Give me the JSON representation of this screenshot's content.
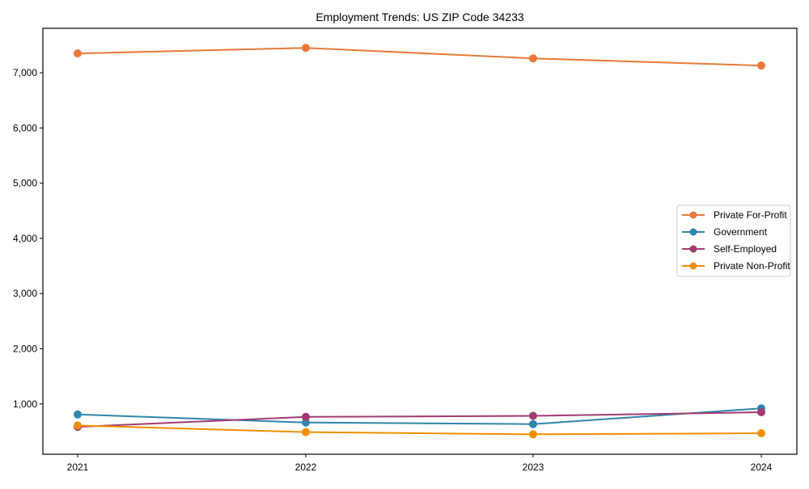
{
  "chart_data": {
    "type": "line",
    "title": "Employment Trends: US ZIP Code 34233",
    "xlabel": "",
    "ylabel": "",
    "categories": [
      "2021",
      "2022",
      "2023",
      "2024"
    ],
    "x": [
      2021,
      2022,
      2023,
      2024
    ],
    "ylim": [
      89,
      7805
    ],
    "yticks": [
      1000,
      2000,
      3000,
      4000,
      5000,
      6000,
      7000
    ],
    "ytick_labels": [
      "1,000",
      "2,000",
      "3,000",
      "4,000",
      "5,000",
      "6,000",
      "7,000"
    ],
    "grid": false,
    "legend_position": "center right",
    "series": [
      {
        "name": "Private For-Profit",
        "color": "#E8793A",
        "marker": "circle",
        "values": [
          7350,
          7450,
          7260,
          7130
        ]
      },
      {
        "name": "Government",
        "color": "#2E86AB",
        "marker": "circle",
        "values": [
          810,
          665,
          635,
          920
        ]
      },
      {
        "name": "Self-Employed",
        "color": "#A23B72",
        "marker": "circle",
        "values": [
          585,
          765,
          785,
          850
        ]
      },
      {
        "name": "Private Non-Profit",
        "color": "#F18F01",
        "marker": "circle",
        "values": [
          610,
          490,
          450,
          470
        ]
      }
    ]
  }
}
